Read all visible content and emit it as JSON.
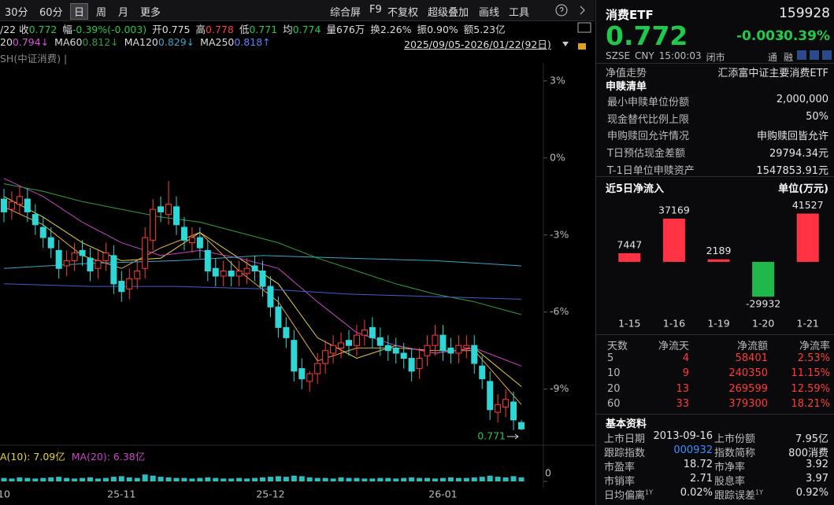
{
  "toolbar": {
    "periods": [
      "30分",
      "60分",
      "日",
      "周",
      "月",
      "更多"
    ],
    "tools": [
      "综合屏",
      "F9",
      "不复权",
      "超级叠加",
      "画线",
      "工具"
    ]
  },
  "quote_bar": [
    {
      "label": "/22 收",
      "value": "0.772"
    },
    {
      "label": "幅",
      "value": "-0.39%(-0.003)"
    },
    {
      "label": "开",
      "value": "0.775"
    },
    {
      "label": "高",
      "value": "0.778"
    },
    {
      "label": "低",
      "value": "0.771"
    },
    {
      "label": "均",
      "value": "0.774"
    },
    {
      "label": "量",
      "value": "676万"
    },
    {
      "label": "换",
      "value": "2.26%"
    },
    {
      "label": "振",
      "value": "0.90%"
    },
    {
      "label": "额",
      "value": "5.23亿"
    }
  ],
  "ma_bar": [
    {
      "label": "20",
      "value": "0.794↓"
    },
    {
      "label": "MA60",
      "value": "0.812↓"
    },
    {
      "label": "MA120",
      "value": "0.829↓"
    },
    {
      "label": "MA250",
      "value": "0.818↑"
    }
  ],
  "date_range": "2025/09/05-2026/01/22(92日)",
  "index_label": "SH(中证消费) |",
  "volume_ma": [
    "A(10): 7.09亿",
    "MA(20): 6.38亿"
  ],
  "quote": {
    "name": "消费ETF",
    "code": "159928",
    "price": "0.772",
    "change": "-0.003",
    "change_pct": "-0.39%",
    "market": "SZSE",
    "currency": "CNY",
    "time": "15:00:03",
    "status": "闭市",
    "tags": [
      "通",
      "融"
    ]
  },
  "nav": {
    "label": "净值走势",
    "fund": "汇添富中证主要消费ETF"
  },
  "redemption": {
    "title": "申赎清单",
    "rows": [
      [
        "最小申赎单位份额",
        "2,000,000"
      ],
      [
        "现金替代比例上限",
        "50%"
      ],
      [
        "申购赎回允许情况",
        "申购赎回皆允许"
      ],
      [
        "T日预估现金差额",
        "29794.34元"
      ],
      [
        "T-1日单位申赎资产",
        "1547853.91元"
      ]
    ]
  },
  "flow_table": {
    "header": [
      "天数",
      "净流天",
      "净流额",
      "净流率"
    ],
    "rows": [
      [
        "5",
        "4",
        "58401",
        "2.53%"
      ],
      [
        "10",
        "9",
        "240350",
        "11.15%"
      ],
      [
        "20",
        "13",
        "269599",
        "12.59%"
      ],
      [
        "60",
        "33",
        "379300",
        "18.21%"
      ]
    ]
  },
  "basic": {
    "title": "基本资料",
    "items": [
      {
        "label": "上市日期",
        "value": "2013-09-16"
      },
      {
        "label": "上市份额",
        "value": "7.95亿"
      },
      {
        "label": "跟踪指数",
        "value": "000932"
      },
      {
        "label": "指数简称",
        "value": "800消费"
      },
      {
        "label": "市盈率",
        "value": "18.72"
      },
      {
        "label": "市净率",
        "value": "3.92"
      },
      {
        "label": "市销率",
        "value": "2.71"
      },
      {
        "label": "股息率",
        "value": "3.97"
      },
      {
        "label": "日均偏离",
        "sup": "1Y",
        "value": "0.02%"
      },
      {
        "label": "跟踪误差",
        "sup": "1Y",
        "value": "0.92%"
      }
    ]
  },
  "chart_data": [
    {
      "type": "candlestick",
      "up_color": "#ff3b3b",
      "down_color": "#2fd6d6",
      "categories": [
        "10",
        null,
        null,
        null,
        null,
        null,
        null,
        null,
        null,
        null,
        null,
        null,
        null,
        null,
        null,
        "25-11",
        null,
        null,
        null,
        null,
        null,
        null,
        null,
        null,
        null,
        null,
        null,
        null,
        null,
        null,
        null,
        null,
        null,
        null,
        "25-12",
        null,
        null,
        null,
        null,
        null,
        null,
        null,
        null,
        null,
        null,
        null,
        null,
        null,
        null,
        null,
        null,
        null,
        null,
        null,
        null,
        null,
        "26-01",
        null,
        null,
        null,
        null,
        null,
        null,
        null,
        null,
        null,
        null
      ],
      "open": [
        -1.6,
        -2.0,
        -1.8,
        -1.6,
        -2.2,
        -2.7,
        -3.1,
        -3.6,
        -4.2,
        -4.0,
        -3.6,
        -3.9,
        -4.3,
        -4.0,
        -3.8,
        -4.8,
        -5.1,
        -4.7,
        -4.3,
        -3.2,
        -1.9,
        -2.2,
        -1.9,
        -2.7,
        -3.3,
        -3.1,
        -3.6,
        -4.3,
        -4.6,
        -4.4,
        -4.6,
        -4.5,
        -4.2,
        -4.4,
        -5.0,
        -5.8,
        -6.6,
        -7.1,
        -8.2,
        -8.7,
        -8.4,
        -8.0,
        -7.6,
        -7.4,
        -7.1,
        -7.3,
        -6.9,
        -6.6,
        -7.0,
        -7.3,
        -7.4,
        -7.6,
        -7.8,
        -8.2,
        -7.7,
        -7.3,
        -6.9,
        -7.4,
        -7.6,
        -7.4,
        -7.3,
        -8.1,
        -8.7,
        -9.9,
        -9.7,
        -9.5,
        -10.3
      ],
      "high": [
        -1.2,
        -1.3,
        -1.1,
        -1.2,
        -1.8,
        -2.3,
        -2.7,
        -3.2,
        -3.6,
        -3.3,
        -3.2,
        -3.5,
        -3.6,
        -3.3,
        -3.4,
        -4.4,
        -4.3,
        -4.0,
        -2.7,
        -1.6,
        -1.5,
        -0.9,
        -1.5,
        -2.3,
        -2.7,
        -2.7,
        -3.2,
        -3.9,
        -4.0,
        -4.0,
        -4.0,
        -3.9,
        -3.8,
        -4.0,
        -4.6,
        -5.4,
        -6.2,
        -6.7,
        -7.8,
        -8.3,
        -7.6,
        -7.1,
        -6.9,
        -6.8,
        -6.7,
        -6.5,
        -6.3,
        -6.2,
        -6.6,
        -6.9,
        -7.0,
        -7.2,
        -7.4,
        -7.4,
        -6.9,
        -6.5,
        -6.5,
        -7.0,
        -6.9,
        -6.9,
        -6.9,
        -7.7,
        -8.3,
        -9.2,
        -9.0,
        -9.1,
        -10.2
      ],
      "low": [
        -2.5,
        -2.4,
        -2.2,
        -2.5,
        -3.0,
        -3.5,
        -3.9,
        -4.7,
        -4.6,
        -4.4,
        -4.2,
        -4.8,
        -4.7,
        -4.4,
        -5.3,
        -5.6,
        -5.5,
        -5.1,
        -4.7,
        -3.6,
        -2.5,
        -2.6,
        -3.0,
        -3.6,
        -3.7,
        -3.9,
        -4.8,
        -5.0,
        -5.0,
        -5.0,
        -5.0,
        -4.9,
        -4.8,
        -5.4,
        -6.2,
        -7.0,
        -7.4,
        -8.7,
        -9.0,
        -9.1,
        -8.8,
        -8.4,
        -8.0,
        -7.8,
        -7.7,
        -7.7,
        -7.3,
        -7.4,
        -7.7,
        -7.9,
        -8.0,
        -8.2,
        -8.7,
        -8.6,
        -8.1,
        -7.7,
        -7.9,
        -8.0,
        -8.0,
        -7.8,
        -8.4,
        -9.0,
        -10.2,
        -10.3,
        -10.1,
        -10.6,
        -10.6
      ],
      "close": [
        -2.1,
        -1.7,
        -1.5,
        -2.1,
        -2.6,
        -3.1,
        -3.5,
        -4.3,
        -4.0,
        -3.7,
        -3.8,
        -4.4,
        -4.0,
        -3.7,
        -4.9,
        -5.2,
        -4.7,
        -4.4,
        -3.1,
        -2.0,
        -2.1,
        -1.8,
        -2.6,
        -3.2,
        -3.1,
        -3.5,
        -4.4,
        -4.6,
        -4.4,
        -4.6,
        -4.4,
        -4.3,
        -4.4,
        -5.0,
        -5.8,
        -6.6,
        -7.0,
        -8.3,
        -8.6,
        -8.4,
        -8.0,
        -7.5,
        -7.3,
        -7.2,
        -7.3,
        -6.9,
        -6.7,
        -7.0,
        -7.3,
        -7.5,
        -7.6,
        -7.8,
        -8.3,
        -7.8,
        -7.3,
        -6.9,
        -7.5,
        -7.6,
        -7.3,
        -7.3,
        -8.0,
        -8.6,
        -9.8,
        -9.6,
        -9.4,
        -10.2,
        -10.55
      ],
      "series": [
        {
          "color": "#e8a640",
          "x": [
            0,
            5,
            10,
            15,
            20,
            25,
            30,
            35,
            40,
            45,
            50,
            55,
            60,
            66
          ],
          "values": [
            -1.9,
            -2.6,
            -3.8,
            -4.3,
            -3.5,
            -2.9,
            -4.4,
            -5.6,
            -7.9,
            -7.4,
            -7.4,
            -7.5,
            -7.5,
            -9.6
          ]
        },
        {
          "color": "#e6d23c",
          "x": [
            0,
            5,
            10,
            15,
            20,
            25,
            30,
            35,
            40,
            45,
            50,
            55,
            60,
            66
          ],
          "values": [
            -1.5,
            -2.3,
            -3.3,
            -4.0,
            -3.9,
            -2.9,
            -3.9,
            -4.9,
            -7.0,
            -7.8,
            -7.3,
            -7.6,
            -7.4,
            -8.9
          ]
        },
        {
          "color": "#c844c8",
          "x": [
            0,
            5,
            10,
            15,
            20,
            25,
            30,
            35,
            40,
            45,
            50,
            55,
            60,
            66
          ],
          "values": [
            -0.8,
            -1.5,
            -2.5,
            -3.3,
            -3.8,
            -3.6,
            -3.9,
            -4.3,
            -5.6,
            -6.8,
            -7.3,
            -7.6,
            -7.4,
            -8.1
          ]
        },
        {
          "color": "#2e9e3e",
          "x": [
            0,
            5,
            10,
            15,
            20,
            25,
            30,
            35,
            40,
            45,
            50,
            55,
            60,
            66
          ],
          "values": [
            -1.0,
            -1.3,
            -1.7,
            -2.0,
            -2.3,
            -2.5,
            -2.9,
            -3.3,
            -3.9,
            -4.4,
            -4.9,
            -5.3,
            -5.6,
            -6.1
          ]
        },
        {
          "color": "#3aa6c4",
          "x": [
            0,
            11,
            22,
            33,
            44,
            55,
            66
          ],
          "values": [
            -4.3,
            -4.1,
            -4.0,
            -3.8,
            -3.9,
            -4.0,
            -4.2
          ]
        },
        {
          "color": "#3f5fd0",
          "x": [
            0,
            11,
            22,
            33,
            44,
            55,
            66
          ],
          "values": [
            -4.9,
            -5.0,
            -5.0,
            -5.1,
            -5.3,
            -5.4,
            -5.5
          ]
        }
      ],
      "ylim": [
        -11,
        3.7
      ],
      "yticks": [
        {
          "value": 3,
          "label": "3%"
        },
        {
          "value": 0,
          "label": "0%"
        },
        {
          "value": -3,
          "label": "-3%"
        },
        {
          "value": -6,
          "label": "-6%"
        },
        {
          "value": -9,
          "label": "-9%"
        }
      ],
      "grid": false,
      "last_label": "0.771"
    },
    {
      "type": "bar",
      "color": "#2fbcbc",
      "values": [
        6,
        5,
        7,
        6,
        5,
        6,
        7,
        8,
        6,
        5,
        6,
        7,
        5,
        6,
        8,
        9,
        7,
        6,
        12,
        10,
        8,
        7,
        6,
        6,
        5,
        6,
        7,
        6,
        5,
        5,
        6,
        5,
        6,
        7,
        8,
        9,
        8,
        10,
        9,
        7,
        6,
        6,
        5,
        7,
        6,
        6,
        5,
        5,
        6,
        6,
        5,
        6,
        7,
        6,
        6,
        5,
        6,
        7,
        6,
        6,
        7,
        8,
        10,
        8,
        7,
        9,
        7
      ],
      "ylim": [
        0,
        30
      ],
      "yticks": [
        0
      ]
    },
    {
      "type": "bar",
      "title": "近5日净流入",
      "unit": "单位(万元)",
      "color": "#ff3344",
      "negative_color": "#1fb84a",
      "categories": [
        "1-15",
        "1-16",
        "1-19",
        "1-20",
        "1-21"
      ],
      "values": [
        7447,
        37169,
        2189,
        -29932,
        41527
      ],
      "ylim": [
        -42000,
        52700
      ]
    }
  ]
}
